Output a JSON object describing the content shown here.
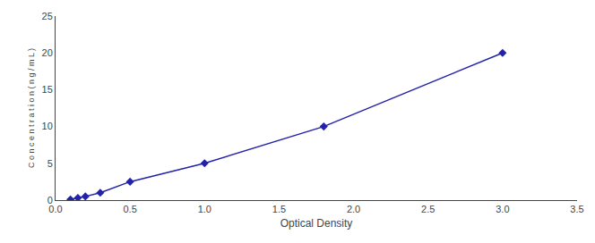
{
  "chart_data": {
    "type": "line",
    "xlabel": "Optical Density",
    "ylabel": "C o n c e n t r a t i o n ( n g / m L )",
    "x": [
      0.1,
      0.15,
      0.2,
      0.3,
      0.5,
      1.0,
      1.8,
      3.0
    ],
    "values": [
      0.1,
      0.3,
      0.5,
      1.0,
      2.5,
      5.0,
      10.0,
      20.0
    ],
    "color": "#2222AA",
    "marker": "diamond",
    "line_style": "solid",
    "xlim": [
      0,
      3.5
    ],
    "ylim": [
      0,
      25
    ],
    "xticks": [
      {
        "value": 0,
        "label": "0.0"
      },
      0.5,
      {
        "value": 1.0,
        "label": "1.0"
      },
      1.5,
      {
        "value": 2.0,
        "label": "2.0"
      },
      2.5,
      {
        "value": 3.0,
        "label": "3.0"
      },
      3.5
    ],
    "yticks": [
      0,
      5,
      10,
      15,
      20,
      25
    ],
    "grid": false
  }
}
